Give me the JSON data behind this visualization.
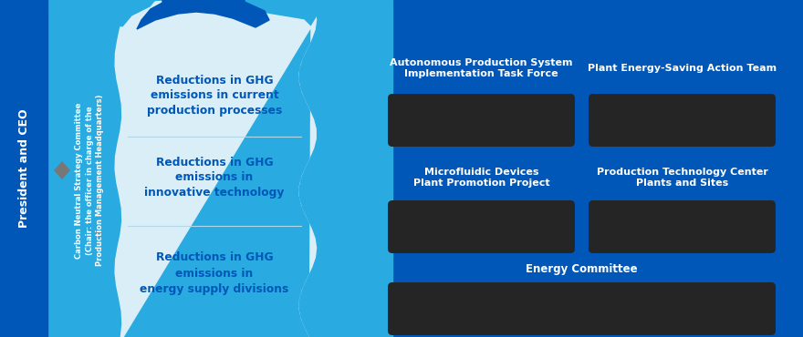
{
  "bg_dark_blue": "#0057B8",
  "bg_cyan": "#29ABE2",
  "bg_very_light_cyan": "#DAEEF7",
  "dark_blue_text": "#0057B8",
  "white_text": "#FFFFFF",
  "dark_box_color": "#252525",
  "diamond_color": "#777777",
  "left_column_text": "President and CEO",
  "committee_title": "Carbon Neutral Strategy Committee",
  "committee_subtitle": "(Chair: the officer in charge of the\nProduction Management Headquarters)",
  "left_items": [
    "Reductions in GHG\nemissions in current\nproduction processes",
    "Reductions in GHG\nemissions in\ninnovative technology",
    "Reductions in GHG\nemissions in\nenergy supply divisions"
  ],
  "right_top_labels": [
    "Autonomous Production System\nImplementation Task Force",
    "Plant Energy-Saving Action Team"
  ],
  "right_mid_labels": [
    "Microfluidic Devices\nPlant Promotion Project",
    "Production Technology Center\nPlants and Sites"
  ],
  "right_bot_label": "Energy Committee"
}
